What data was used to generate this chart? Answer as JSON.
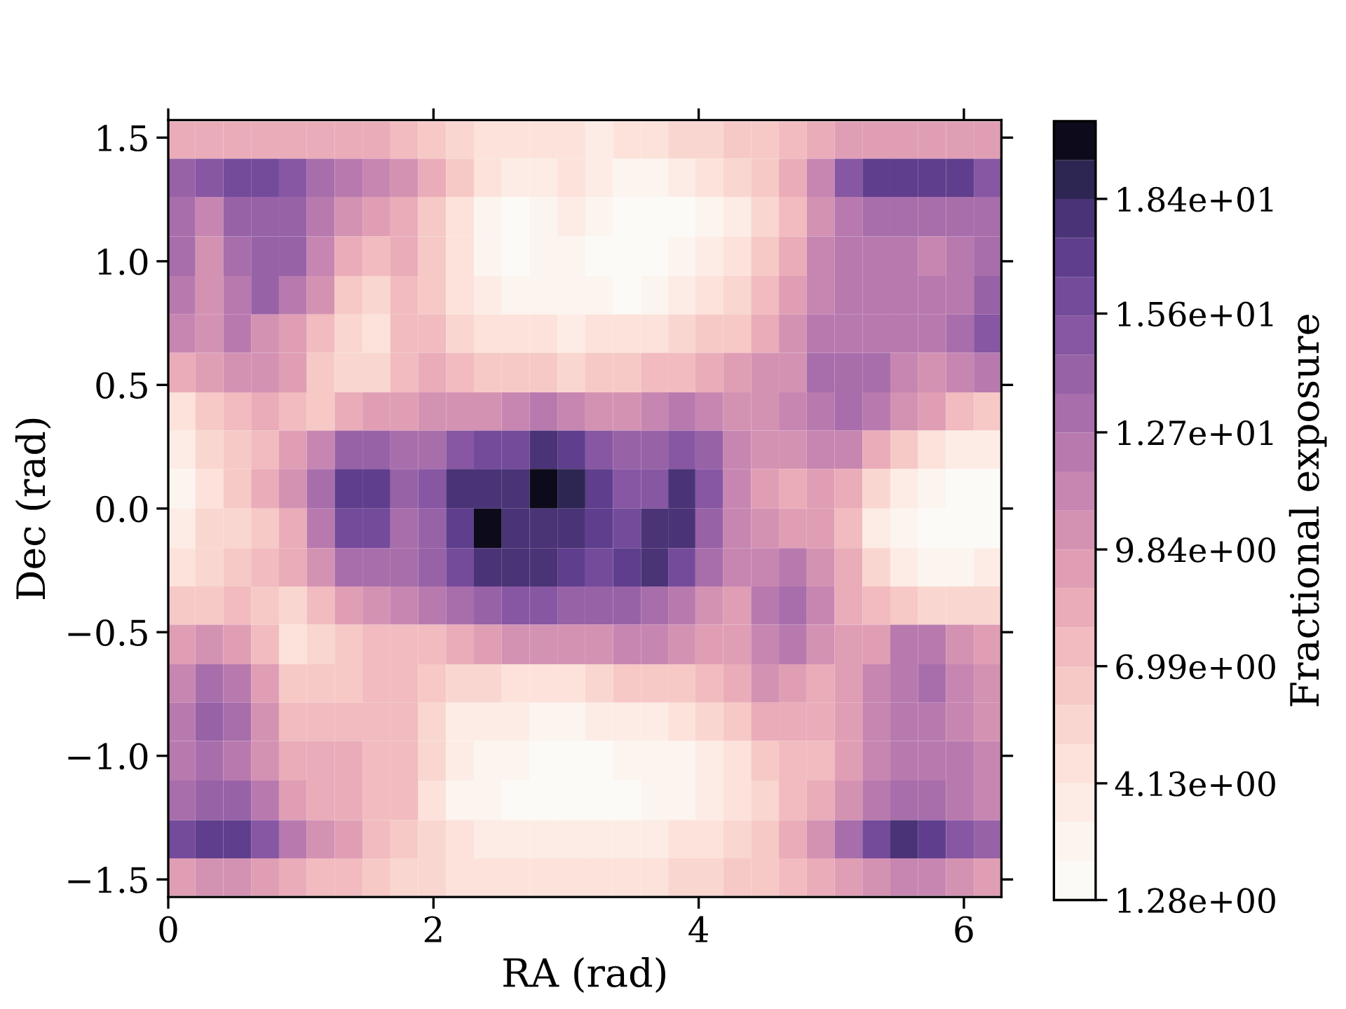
{
  "chart_data": {
    "type": "heatmap",
    "xlabel": "RA (rad)",
    "ylabel": "Dec (rad)",
    "clabel": "Fractional exposure",
    "x": [
      0.1,
      0.31,
      0.52,
      0.73,
      0.94,
      1.15,
      1.36,
      1.57,
      1.78,
      1.99,
      2.2,
      2.41,
      2.62,
      2.83,
      3.04,
      3.25,
      3.46,
      3.67,
      3.87,
      4.08,
      4.29,
      4.5,
      4.71,
      4.92,
      5.13,
      5.34,
      5.55,
      5.76,
      5.97,
      6.18
    ],
    "y": [
      1.49,
      1.34,
      1.18,
      1.02,
      0.86,
      0.71,
      0.55,
      0.39,
      0.24,
      0.08,
      -0.08,
      -0.24,
      -0.39,
      -0.55,
      -0.71,
      -0.86,
      -1.02,
      -1.18,
      -1.34,
      -1.49
    ],
    "xlim": [
      0,
      6.283
    ],
    "ylim": [
      -1.571,
      1.571
    ],
    "xticks": [
      0,
      2,
      4,
      6
    ],
    "yticks": [
      {
        "value": -1.5,
        "label": "−1.5"
      },
      {
        "value": -1.0,
        "label": "−1.0"
      },
      {
        "value": -0.5,
        "label": "−0.5"
      },
      {
        "value": 0.0,
        "label": "0.0"
      },
      {
        "value": 0.5,
        "label": "0.5"
      },
      {
        "value": 1.0,
        "label": "1.0"
      },
      {
        "value": 1.5,
        "label": "1.5"
      }
    ],
    "clim": [
      1.28,
      20.3
    ],
    "cticks": [
      {
        "value": 1.28,
        "label": "1.28e+00"
      },
      {
        "value": 4.13,
        "label": "4.13e+00"
      },
      {
        "value": 6.99,
        "label": "6.99e+00"
      },
      {
        "value": 9.84,
        "label": "9.84e+00"
      },
      {
        "value": 12.7,
        "label": "1.27e+01"
      },
      {
        "value": 15.6,
        "label": "1.56e+01"
      },
      {
        "value": 18.4,
        "label": "1.84e+01"
      }
    ],
    "cells": [
      [
        8.4,
        8.4,
        8.4,
        8.4,
        8.4,
        8.4,
        8.4,
        8.4,
        7.5,
        6.5,
        5.6,
        4.6,
        4.6,
        4.6,
        4.6,
        3.7,
        4.6,
        4.6,
        5.6,
        5.6,
        6.5,
        6.5,
        7.5,
        8.4,
        9.4,
        9.4,
        9.4,
        9.4,
        9.4,
        9.4
      ],
      [
        14.1,
        15.1,
        16.0,
        16.0,
        15.1,
        13.2,
        12.2,
        11.3,
        10.3,
        8.4,
        6.5,
        4.6,
        3.7,
        3.7,
        4.6,
        3.7,
        2.7,
        2.7,
        3.7,
        4.6,
        5.6,
        6.5,
        8.4,
        11.3,
        15.1,
        17.0,
        17.0,
        17.0,
        17.0,
        15.1
      ],
      [
        13.2,
        11.3,
        14.1,
        14.1,
        14.1,
        12.2,
        10.3,
        9.4,
        8.4,
        6.5,
        4.6,
        2.7,
        1.8,
        2.7,
        3.7,
        2.7,
        1.8,
        1.8,
        1.8,
        2.7,
        3.7,
        5.6,
        7.5,
        10.3,
        12.2,
        13.2,
        13.2,
        13.2,
        13.2,
        13.2
      ],
      [
        13.2,
        10.3,
        13.2,
        14.1,
        14.1,
        11.3,
        8.4,
        7.5,
        8.4,
        6.5,
        4.6,
        2.7,
        1.8,
        2.7,
        2.7,
        1.8,
        1.8,
        1.8,
        2.7,
        3.7,
        4.6,
        6.5,
        8.4,
        11.3,
        12.2,
        12.2,
        12.2,
        11.3,
        12.2,
        13.2
      ],
      [
        12.2,
        10.3,
        12.2,
        14.1,
        12.2,
        10.3,
        6.5,
        5.6,
        7.5,
        6.5,
        4.6,
        3.7,
        2.7,
        2.7,
        2.7,
        2.7,
        1.8,
        2.7,
        3.7,
        4.6,
        5.6,
        7.5,
        9.4,
        11.3,
        12.2,
        12.2,
        12.2,
        12.2,
        12.2,
        14.1
      ],
      [
        11.3,
        10.3,
        12.2,
        10.3,
        9.4,
        7.5,
        5.6,
        4.6,
        7.5,
        7.5,
        5.6,
        4.6,
        4.6,
        4.6,
        3.7,
        4.6,
        4.6,
        4.6,
        5.6,
        6.5,
        6.5,
        8.4,
        10.3,
        12.2,
        12.2,
        12.2,
        12.2,
        12.2,
        13.2,
        15.1
      ],
      [
        8.4,
        9.4,
        10.3,
        10.3,
        9.4,
        6.5,
        5.6,
        5.6,
        7.5,
        8.4,
        7.5,
        6.5,
        6.5,
        6.5,
        5.6,
        6.5,
        6.5,
        7.5,
        7.5,
        8.4,
        9.4,
        10.3,
        10.3,
        13.2,
        13.2,
        13.2,
        11.3,
        10.3,
        11.3,
        12.2
      ],
      [
        4.6,
        6.5,
        7.5,
        8.4,
        7.5,
        6.5,
        8.4,
        9.4,
        9.4,
        10.3,
        10.3,
        10.3,
        11.3,
        12.2,
        11.3,
        10.3,
        10.3,
        11.3,
        12.2,
        11.3,
        10.3,
        10.3,
        11.3,
        12.2,
        13.2,
        12.2,
        10.3,
        9.4,
        7.5,
        6.5
      ],
      [
        3.7,
        5.6,
        6.5,
        7.5,
        9.4,
        11.3,
        14.1,
        14.1,
        13.2,
        13.2,
        15.1,
        16.0,
        16.0,
        17.9,
        17.0,
        15.1,
        14.1,
        14.1,
        15.1,
        14.1,
        11.3,
        10.3,
        10.3,
        11.3,
        11.3,
        8.4,
        6.5,
        4.6,
        3.7,
        3.7
      ],
      [
        2.7,
        4.6,
        6.5,
        8.4,
        10.3,
        13.2,
        17.0,
        17.0,
        14.1,
        15.1,
        17.9,
        17.9,
        17.9,
        19.8,
        18.9,
        17.0,
        15.1,
        15.1,
        17.9,
        15.1,
        11.3,
        9.4,
        8.4,
        9.4,
        8.4,
        5.6,
        3.7,
        2.7,
        1.8,
        1.8
      ],
      [
        3.7,
        5.6,
        5.6,
        6.5,
        8.4,
        12.2,
        16.0,
        16.0,
        13.2,
        14.1,
        17.0,
        19.8,
        17.9,
        17.9,
        17.9,
        17.0,
        16.0,
        17.9,
        17.9,
        14.1,
        11.3,
        10.3,
        9.4,
        9.4,
        7.5,
        3.7,
        2.7,
        1.8,
        1.8,
        1.8
      ],
      [
        4.6,
        5.6,
        6.5,
        7.5,
        8.4,
        10.3,
        13.2,
        13.2,
        13.2,
        14.1,
        16.0,
        17.9,
        17.9,
        17.9,
        17.0,
        16.0,
        17.0,
        17.9,
        16.0,
        13.2,
        11.3,
        11.3,
        12.2,
        10.3,
        8.4,
        5.6,
        3.7,
        2.7,
        2.7,
        3.7
      ],
      [
        6.5,
        6.5,
        7.5,
        6.5,
        5.6,
        7.5,
        9.4,
        10.3,
        11.3,
        12.2,
        13.2,
        14.1,
        15.1,
        15.1,
        14.1,
        14.1,
        14.1,
        13.2,
        12.2,
        10.3,
        9.4,
        12.2,
        13.2,
        11.3,
        8.4,
        7.5,
        6.5,
        5.6,
        5.6,
        5.6
      ],
      [
        9.4,
        10.3,
        9.4,
        7.5,
        4.6,
        5.6,
        6.5,
        7.5,
        7.5,
        7.5,
        8.4,
        9.4,
        10.3,
        10.3,
        10.3,
        10.3,
        11.3,
        11.3,
        10.3,
        9.4,
        9.4,
        11.3,
        12.2,
        10.3,
        9.4,
        9.4,
        12.2,
        12.2,
        10.3,
        9.4
      ],
      [
        11.3,
        13.2,
        12.2,
        9.4,
        6.5,
        6.5,
        6.5,
        7.5,
        7.5,
        6.5,
        5.6,
        5.6,
        4.6,
        4.6,
        4.6,
        5.6,
        6.5,
        6.5,
        6.5,
        7.5,
        8.4,
        10.3,
        9.4,
        8.4,
        9.4,
        11.3,
        12.2,
        13.2,
        11.3,
        10.3
      ],
      [
        12.2,
        14.1,
        13.2,
        10.3,
        7.5,
        7.5,
        7.5,
        7.5,
        7.5,
        5.6,
        3.7,
        3.7,
        3.7,
        2.7,
        2.7,
        3.7,
        3.7,
        3.7,
        4.6,
        5.6,
        6.5,
        8.4,
        8.4,
        8.4,
        9.4,
        11.3,
        12.2,
        12.2,
        11.3,
        10.3
      ],
      [
        12.2,
        13.2,
        12.2,
        10.3,
        8.4,
        8.4,
        8.4,
        7.5,
        7.5,
        5.6,
        3.7,
        2.7,
        2.7,
        1.8,
        1.8,
        1.8,
        2.7,
        2.7,
        2.7,
        3.7,
        4.6,
        6.5,
        7.5,
        7.5,
        9.4,
        11.3,
        12.2,
        12.2,
        12.2,
        11.3
      ],
      [
        13.2,
        14.1,
        14.1,
        12.2,
        9.4,
        8.4,
        8.4,
        7.5,
        7.5,
        4.6,
        2.7,
        2.7,
        1.8,
        1.8,
        1.8,
        1.8,
        1.8,
        2.7,
        2.7,
        3.7,
        4.6,
        5.6,
        7.5,
        8.4,
        10.3,
        12.2,
        13.2,
        13.2,
        12.2,
        11.3
      ],
      [
        16.0,
        17.0,
        17.0,
        15.1,
        12.2,
        10.3,
        9.4,
        7.5,
        6.5,
        5.6,
        4.6,
        3.7,
        3.7,
        3.7,
        3.7,
        3.7,
        3.7,
        3.7,
        4.6,
        4.6,
        5.6,
        6.5,
        8.4,
        10.3,
        13.2,
        16.0,
        17.9,
        17.0,
        15.1,
        14.1
      ],
      [
        9.4,
        10.3,
        10.3,
        9.4,
        8.4,
        7.5,
        7.5,
        6.5,
        5.6,
        5.6,
        4.6,
        4.6,
        4.6,
        4.6,
        4.6,
        4.6,
        4.6,
        4.6,
        5.6,
        5.6,
        6.5,
        6.5,
        7.5,
        8.4,
        9.4,
        10.3,
        11.3,
        11.3,
        10.3,
        9.4
      ]
    ]
  }
}
